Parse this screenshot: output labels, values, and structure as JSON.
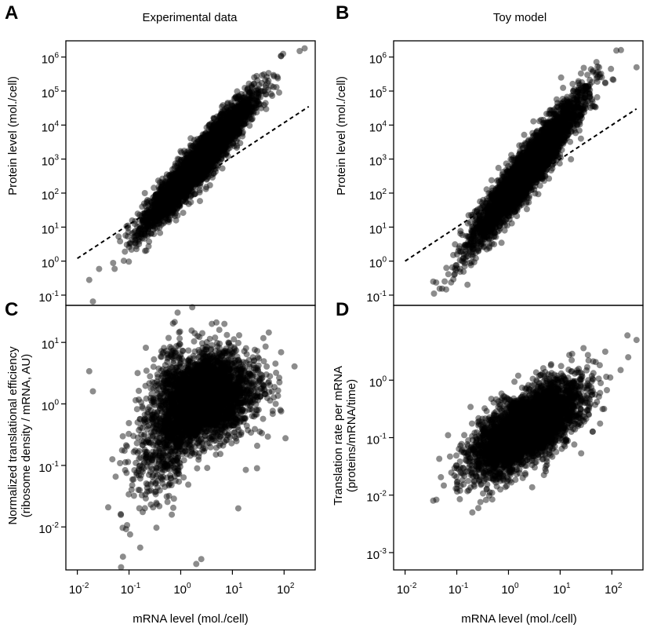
{
  "figure": {
    "panels": [
      {
        "id": "A",
        "label": "A",
        "title": "Experimental data"
      },
      {
        "id": "B",
        "label": "B",
        "title": "Toy model"
      },
      {
        "id": "C",
        "label": "C",
        "title": ""
      },
      {
        "id": "D",
        "label": "D",
        "title": ""
      }
    ],
    "point_color": "#000000"
  },
  "chart_data": [
    {
      "panel": "A",
      "type": "scatter",
      "title": "Experimental data",
      "xlabel": "",
      "ylabel": "Protein level (mol./cell)",
      "x_scale": "log10",
      "y_scale": "log10",
      "xlim": [
        0.006,
        400
      ],
      "ylim": [
        0.05,
        3000000
      ],
      "x_ticks": [],
      "y_ticks": [
        "10^-1",
        "10^0",
        "10^1",
        "10^2",
        "10^3",
        "10^4",
        "10^5",
        "10^6"
      ],
      "trend": {
        "slope": 1.7,
        "intercept_log10": 2.3,
        "spread_log10": 0.3
      },
      "reference_line": {
        "style": "dashed",
        "points": [
          [
            0.01,
            1.2
          ],
          [
            300,
            35000
          ]
        ]
      },
      "n_points_approx": 4000,
      "extremes": [
        [
          0.017,
          0.28
        ],
        [
          0.02,
          0.065
        ],
        [
          200,
          1500000
        ],
        [
          250,
          1800000
        ]
      ]
    },
    {
      "panel": "B",
      "type": "scatter",
      "title": "Toy model",
      "xlabel": "",
      "ylabel": "Protein level (mol./cell)",
      "x_scale": "log10",
      "y_scale": "log10",
      "xlim": [
        0.006,
        400
      ],
      "ylim": [
        0.05,
        3000000
      ],
      "x_ticks": [],
      "y_ticks": [
        "10^-1",
        "10^0",
        "10^1",
        "10^2",
        "10^3",
        "10^4",
        "10^5",
        "10^6"
      ],
      "trend": {
        "slope": 1.9,
        "intercept_log10": 2.0,
        "spread_log10": 0.35
      },
      "reference_line": {
        "style": "dashed",
        "points": [
          [
            0.01,
            1.0
          ],
          [
            300,
            30000
          ]
        ]
      },
      "n_points_approx": 4000,
      "extremes": [
        [
          0.035,
          0.25
        ],
        [
          150,
          1600000
        ],
        [
          300,
          500000
        ]
      ]
    },
    {
      "panel": "C",
      "type": "scatter",
      "title": "",
      "xlabel": "mRNA level (mol./cell)",
      "ylabel": "Normalized translational efficiency",
      "ylabel2": "(ribosome density / mRNA, AU)",
      "x_scale": "log10",
      "y_scale": "log10",
      "xlim": [
        0.006,
        400
      ],
      "ylim": [
        0.002,
        40
      ],
      "x_ticks": [
        "10^-2",
        "10^-1",
        "10^0",
        "10^1",
        "10^2"
      ],
      "y_ticks": [
        "10^-2",
        "10^-1",
        "10^0",
        "10^1"
      ],
      "trend": {
        "shape": "saturating",
        "plateau": 2.0,
        "spread_log10": 0.35
      },
      "n_points_approx": 4000,
      "extremes": [
        [
          0.017,
          3.4
        ],
        [
          0.02,
          1.6
        ],
        [
          2,
          0.0025
        ],
        [
          2.5,
          0.003
        ],
        [
          7,
          20
        ],
        [
          4,
          20
        ],
        [
          30,
          0.09
        ],
        [
          13,
          0.02
        ]
      ]
    },
    {
      "panel": "D",
      "type": "scatter",
      "title": "",
      "xlabel": "mRNA level (mol./cell)",
      "ylabel": "Translation rate per mRNA",
      "ylabel2": "(proteins/mRNA/time)",
      "x_scale": "log10",
      "y_scale": "log10",
      "xlim": [
        0.006,
        400
      ],
      "ylim": [
        0.0005,
        20
      ],
      "x_ticks": [
        "10^-2",
        "10^-1",
        "10^0",
        "10^1",
        "10^2"
      ],
      "y_ticks": [
        "10^-3",
        "10^-2",
        "10^-1",
        "10^0"
      ],
      "trend": {
        "slope": 0.5,
        "intercept_log10": -1.0,
        "spread_log10": 0.3
      },
      "n_points_approx": 4000,
      "extremes": [
        [
          0.035,
          0.008
        ],
        [
          200,
          6
        ],
        [
          300,
          5
        ],
        [
          0.2,
          0.005
        ]
      ]
    }
  ]
}
